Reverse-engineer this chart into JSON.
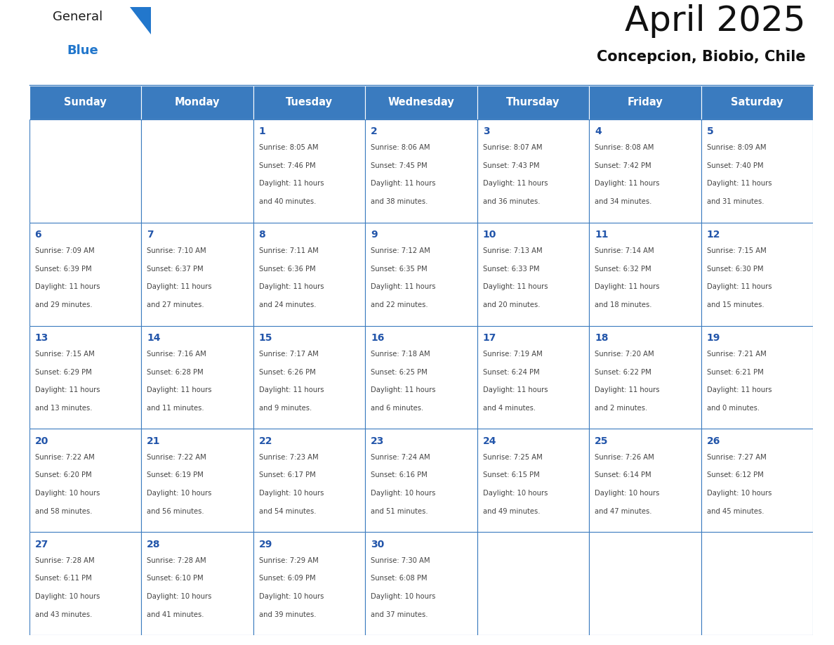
{
  "title": "April 2025",
  "subtitle": "Concepcion, Biobio, Chile",
  "days_of_week": [
    "Sunday",
    "Monday",
    "Tuesday",
    "Wednesday",
    "Thursday",
    "Friday",
    "Saturday"
  ],
  "header_bg": "#3a7bbf",
  "header_text": "#ffffff",
  "cell_bg": "#ffffff",
  "border_color": "#3a7bbf",
  "day_number_color": "#2255aa",
  "text_color": "#444444",
  "weeks": [
    [
      {
        "day": null,
        "info": ""
      },
      {
        "day": null,
        "info": ""
      },
      {
        "day": 1,
        "info": "Sunrise: 8:05 AM\nSunset: 7:46 PM\nDaylight: 11 hours\nand 40 minutes."
      },
      {
        "day": 2,
        "info": "Sunrise: 8:06 AM\nSunset: 7:45 PM\nDaylight: 11 hours\nand 38 minutes."
      },
      {
        "day": 3,
        "info": "Sunrise: 8:07 AM\nSunset: 7:43 PM\nDaylight: 11 hours\nand 36 minutes."
      },
      {
        "day": 4,
        "info": "Sunrise: 8:08 AM\nSunset: 7:42 PM\nDaylight: 11 hours\nand 34 minutes."
      },
      {
        "day": 5,
        "info": "Sunrise: 8:09 AM\nSunset: 7:40 PM\nDaylight: 11 hours\nand 31 minutes."
      }
    ],
    [
      {
        "day": 6,
        "info": "Sunrise: 7:09 AM\nSunset: 6:39 PM\nDaylight: 11 hours\nand 29 minutes."
      },
      {
        "day": 7,
        "info": "Sunrise: 7:10 AM\nSunset: 6:37 PM\nDaylight: 11 hours\nand 27 minutes."
      },
      {
        "day": 8,
        "info": "Sunrise: 7:11 AM\nSunset: 6:36 PM\nDaylight: 11 hours\nand 24 minutes."
      },
      {
        "day": 9,
        "info": "Sunrise: 7:12 AM\nSunset: 6:35 PM\nDaylight: 11 hours\nand 22 minutes."
      },
      {
        "day": 10,
        "info": "Sunrise: 7:13 AM\nSunset: 6:33 PM\nDaylight: 11 hours\nand 20 minutes."
      },
      {
        "day": 11,
        "info": "Sunrise: 7:14 AM\nSunset: 6:32 PM\nDaylight: 11 hours\nand 18 minutes."
      },
      {
        "day": 12,
        "info": "Sunrise: 7:15 AM\nSunset: 6:30 PM\nDaylight: 11 hours\nand 15 minutes."
      }
    ],
    [
      {
        "day": 13,
        "info": "Sunrise: 7:15 AM\nSunset: 6:29 PM\nDaylight: 11 hours\nand 13 minutes."
      },
      {
        "day": 14,
        "info": "Sunrise: 7:16 AM\nSunset: 6:28 PM\nDaylight: 11 hours\nand 11 minutes."
      },
      {
        "day": 15,
        "info": "Sunrise: 7:17 AM\nSunset: 6:26 PM\nDaylight: 11 hours\nand 9 minutes."
      },
      {
        "day": 16,
        "info": "Sunrise: 7:18 AM\nSunset: 6:25 PM\nDaylight: 11 hours\nand 6 minutes."
      },
      {
        "day": 17,
        "info": "Sunrise: 7:19 AM\nSunset: 6:24 PM\nDaylight: 11 hours\nand 4 minutes."
      },
      {
        "day": 18,
        "info": "Sunrise: 7:20 AM\nSunset: 6:22 PM\nDaylight: 11 hours\nand 2 minutes."
      },
      {
        "day": 19,
        "info": "Sunrise: 7:21 AM\nSunset: 6:21 PM\nDaylight: 11 hours\nand 0 minutes."
      }
    ],
    [
      {
        "day": 20,
        "info": "Sunrise: 7:22 AM\nSunset: 6:20 PM\nDaylight: 10 hours\nand 58 minutes."
      },
      {
        "day": 21,
        "info": "Sunrise: 7:22 AM\nSunset: 6:19 PM\nDaylight: 10 hours\nand 56 minutes."
      },
      {
        "day": 22,
        "info": "Sunrise: 7:23 AM\nSunset: 6:17 PM\nDaylight: 10 hours\nand 54 minutes."
      },
      {
        "day": 23,
        "info": "Sunrise: 7:24 AM\nSunset: 6:16 PM\nDaylight: 10 hours\nand 51 minutes."
      },
      {
        "day": 24,
        "info": "Sunrise: 7:25 AM\nSunset: 6:15 PM\nDaylight: 10 hours\nand 49 minutes."
      },
      {
        "day": 25,
        "info": "Sunrise: 7:26 AM\nSunset: 6:14 PM\nDaylight: 10 hours\nand 47 minutes."
      },
      {
        "day": 26,
        "info": "Sunrise: 7:27 AM\nSunset: 6:12 PM\nDaylight: 10 hours\nand 45 minutes."
      }
    ],
    [
      {
        "day": 27,
        "info": "Sunrise: 7:28 AM\nSunset: 6:11 PM\nDaylight: 10 hours\nand 43 minutes."
      },
      {
        "day": 28,
        "info": "Sunrise: 7:28 AM\nSunset: 6:10 PM\nDaylight: 10 hours\nand 41 minutes."
      },
      {
        "day": 29,
        "info": "Sunrise: 7:29 AM\nSunset: 6:09 PM\nDaylight: 10 hours\nand 39 minutes."
      },
      {
        "day": 30,
        "info": "Sunrise: 7:30 AM\nSunset: 6:08 PM\nDaylight: 10 hours\nand 37 minutes."
      },
      {
        "day": null,
        "info": ""
      },
      {
        "day": null,
        "info": ""
      },
      {
        "day": null,
        "info": ""
      }
    ]
  ]
}
